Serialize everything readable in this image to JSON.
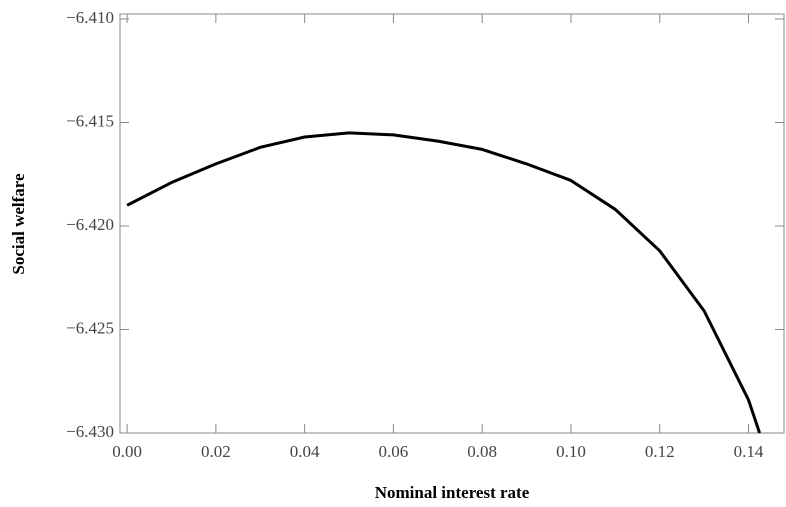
{
  "chart_data": {
    "type": "line",
    "x_label": "Nominal interest rate",
    "y_label": "Social welfare",
    "x": [
      0,
      0.01,
      0.02,
      0.03,
      0.04,
      0.05,
      0.06,
      0.07,
      0.08,
      0.09,
      0.1,
      0.11,
      0.12,
      0.13,
      0.14,
      0.1425
    ],
    "series": [
      {
        "color": "#000000",
        "values": [
          -6.419,
          -6.4179,
          -6.417,
          -6.4162,
          -6.4157,
          -6.4155,
          -6.4156,
          -6.4159,
          -6.4163,
          -6.417,
          -6.4178,
          -6.4192,
          -6.4212,
          -6.4241,
          -6.4284,
          -6.43
        ]
      }
    ],
    "xlim": [
      -0.0016,
      0.148
    ],
    "ylim": [
      -6.43,
      -6.41
    ],
    "xticks": [
      {
        "value": 0,
        "label": "0.00"
      },
      {
        "value": 0.02,
        "label": "0.02"
      },
      {
        "value": 0.04,
        "label": "0.04"
      },
      {
        "value": 0.06,
        "label": "0.06"
      },
      {
        "value": 0.08,
        "label": "0.08"
      },
      {
        "value": 0.1,
        "label": "0.10"
      },
      {
        "value": 0.12,
        "label": "0.12"
      },
      {
        "value": 0.14,
        "label": "0.14"
      }
    ],
    "yticks": [
      {
        "value": -6.43,
        "label": "−6.430"
      },
      {
        "value": -6.425,
        "label": "−6.425"
      },
      {
        "value": -6.42,
        "label": "−6.420"
      },
      {
        "value": -6.415,
        "label": "−6.415"
      },
      {
        "value": -6.41,
        "label": "−6.410"
      }
    ],
    "grid": false
  }
}
